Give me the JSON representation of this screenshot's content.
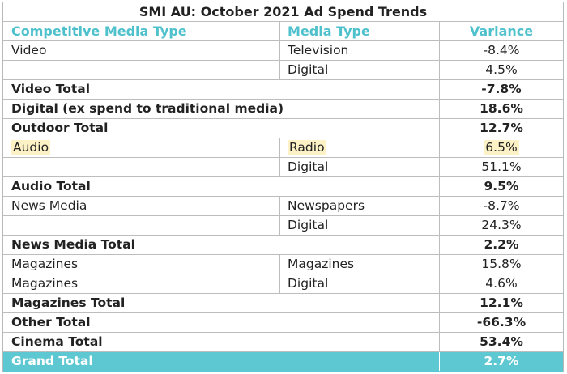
{
  "title": "SMI AU: October 2021 Ad Spend Trends",
  "headers": {
    "competitive_media_type": "Competitive Media Type",
    "media_type": "Media Type",
    "variance": "Variance"
  },
  "rows": [
    {
      "c1": "Video",
      "c2": "Television",
      "c3": "-8.4%"
    },
    {
      "c1": "",
      "c2": "Digital",
      "c3": "4.5%"
    },
    {
      "c1": "Video Total",
      "c2": "",
      "c3": "-7.8%"
    },
    {
      "c1": "Digital (ex spend to traditional media)",
      "c2": "",
      "c3": "18.6%"
    },
    {
      "c1": "Outdoor Total",
      "c2": "",
      "c3": "12.7%"
    },
    {
      "c1": "Audio",
      "c2": "Radio",
      "c3": "6.5%"
    },
    {
      "c1": "",
      "c2": "Digital",
      "c3": "51.1%"
    },
    {
      "c1": "Audio Total",
      "c2": "",
      "c3": "9.5%"
    },
    {
      "c1": "News Media",
      "c2": "Newspapers",
      "c3": "-8.7%"
    },
    {
      "c1": "",
      "c2": "Digital",
      "c3": "24.3%"
    },
    {
      "c1": "News Media Total",
      "c2": "",
      "c3": "2.2%"
    },
    {
      "c1": "Magazines",
      "c2": "Magazines",
      "c3": "15.8%"
    },
    {
      "c1": "Magazines",
      "c2": "Digital",
      "c3": "4.6%"
    },
    {
      "c1": "Magazines Total",
      "c2": "",
      "c3": "12.1%"
    },
    {
      "c1": "Other Total",
      "c2": "",
      "c3": "-66.3%"
    },
    {
      "c1": "Cinema Total",
      "c2": "",
      "c3": "53.4%"
    },
    {
      "c1": "Grand Total",
      "c2": "",
      "c3": "2.7%"
    }
  ],
  "colors": {
    "header_text": "#4fc1cc",
    "grand_total_background": "#5ec8d2",
    "highlight": "#fdf1c6"
  }
}
